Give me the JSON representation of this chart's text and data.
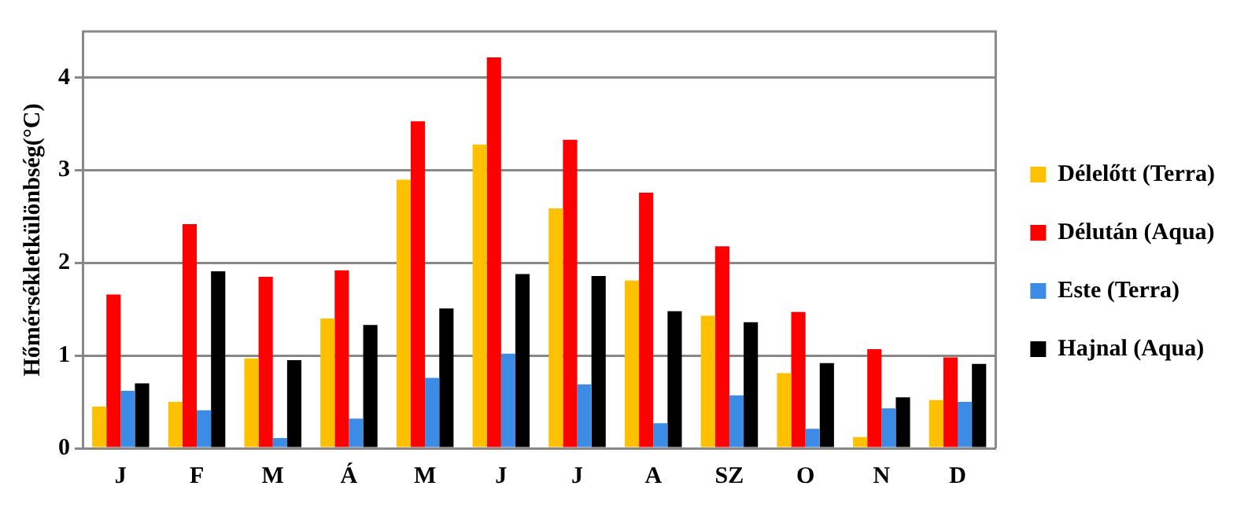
{
  "chart_data": {
    "type": "bar",
    "ylabel": "Hőmérsékletkülönbség(°C)",
    "categories": [
      "J",
      "F",
      "M",
      "Á",
      "M",
      "J",
      "J",
      "A",
      "SZ",
      "O",
      "N",
      "D"
    ],
    "series": [
      {
        "name": "Délelőtt (Terra)",
        "color": "#ffc000",
        "values": [
          0.45,
          0.5,
          0.97,
          1.4,
          2.9,
          3.28,
          2.59,
          1.81,
          1.43,
          0.81,
          0.12,
          0.52
        ]
      },
      {
        "name": "Délután (Aqua)",
        "color": "#ff0000",
        "values": [
          1.66,
          2.42,
          1.85,
          1.92,
          3.53,
          4.22,
          3.33,
          2.76,
          2.18,
          1.47,
          1.07,
          0.98
        ]
      },
      {
        "name": "Este (Terra)",
        "color": "#3c8ce6",
        "values": [
          0.62,
          0.41,
          0.11,
          0.32,
          0.76,
          1.02,
          0.69,
          0.27,
          0.57,
          0.21,
          0.43,
          0.5
        ]
      },
      {
        "name": "Hajnal (Aqua)",
        "color": "#000000",
        "values": [
          0.7,
          1.91,
          0.95,
          1.33,
          1.51,
          1.88,
          1.86,
          1.48,
          1.36,
          0.92,
          0.55,
          0.91
        ]
      }
    ],
    "ylim": [
      0,
      4.5
    ],
    "yticks": [
      0,
      1,
      2,
      3,
      4
    ],
    "grid": "y",
    "legend": "right"
  }
}
